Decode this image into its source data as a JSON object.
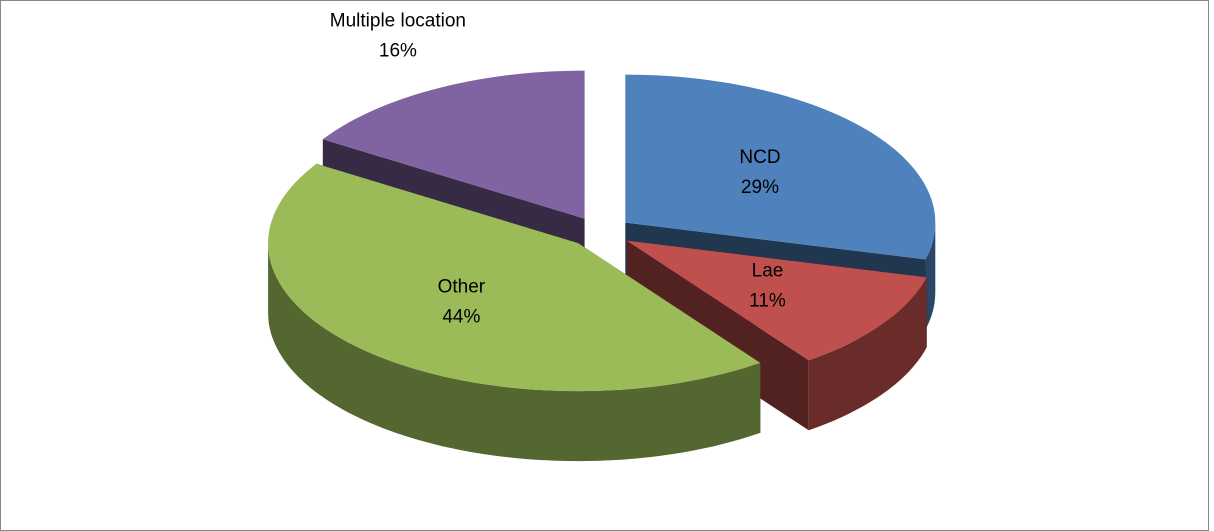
{
  "chart_data": {
    "type": "pie",
    "categories": [
      "NCD",
      "Lae",
      "Other",
      "Multiple location"
    ],
    "values": [
      29,
      11,
      44,
      16
    ],
    "value_labels": [
      "29%",
      "11%",
      "44%",
      "16%"
    ],
    "colors": [
      "#4f81bd",
      "#c0504d",
      "#9bbb59",
      "#8064a2"
    ],
    "exploded": true,
    "three_d": true
  }
}
